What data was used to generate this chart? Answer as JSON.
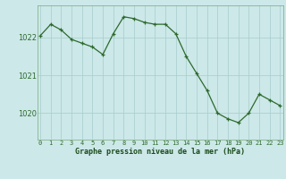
{
  "x": [
    0,
    1,
    2,
    3,
    4,
    5,
    6,
    7,
    8,
    9,
    10,
    11,
    12,
    13,
    14,
    15,
    16,
    17,
    18,
    19,
    20,
    21,
    22,
    23
  ],
  "y": [
    1022.05,
    1022.35,
    1022.2,
    1021.95,
    1021.85,
    1021.75,
    1021.55,
    1022.1,
    1022.55,
    1022.5,
    1022.4,
    1022.35,
    1022.35,
    1022.1,
    1021.5,
    1021.05,
    1020.6,
    1020.0,
    1019.85,
    1019.75,
    1020.0,
    1020.5,
    1020.35,
    1020.2
  ],
  "line_color": "#2d6a2d",
  "marker_color": "#2d6a2d",
  "bg_color": "#cce8e8",
  "grid_color": "#a8cccc",
  "xlabel": "Graphe pression niveau de la mer (hPa)",
  "xlabel_color": "#1a4a1a",
  "yticks": [
    1020,
    1021,
    1022
  ],
  "ylim": [
    1019.3,
    1022.85
  ],
  "xlim": [
    -0.3,
    23.3
  ],
  "xtick_labels": [
    "0",
    "1",
    "2",
    "3",
    "4",
    "5",
    "6",
    "7",
    "8",
    "9",
    "10",
    "11",
    "12",
    "13",
    "14",
    "15",
    "16",
    "17",
    "18",
    "19",
    "20",
    "21",
    "22",
    "23"
  ],
  "spine_color": "#7aaa7a",
  "tick_color": "#2d6a2d"
}
